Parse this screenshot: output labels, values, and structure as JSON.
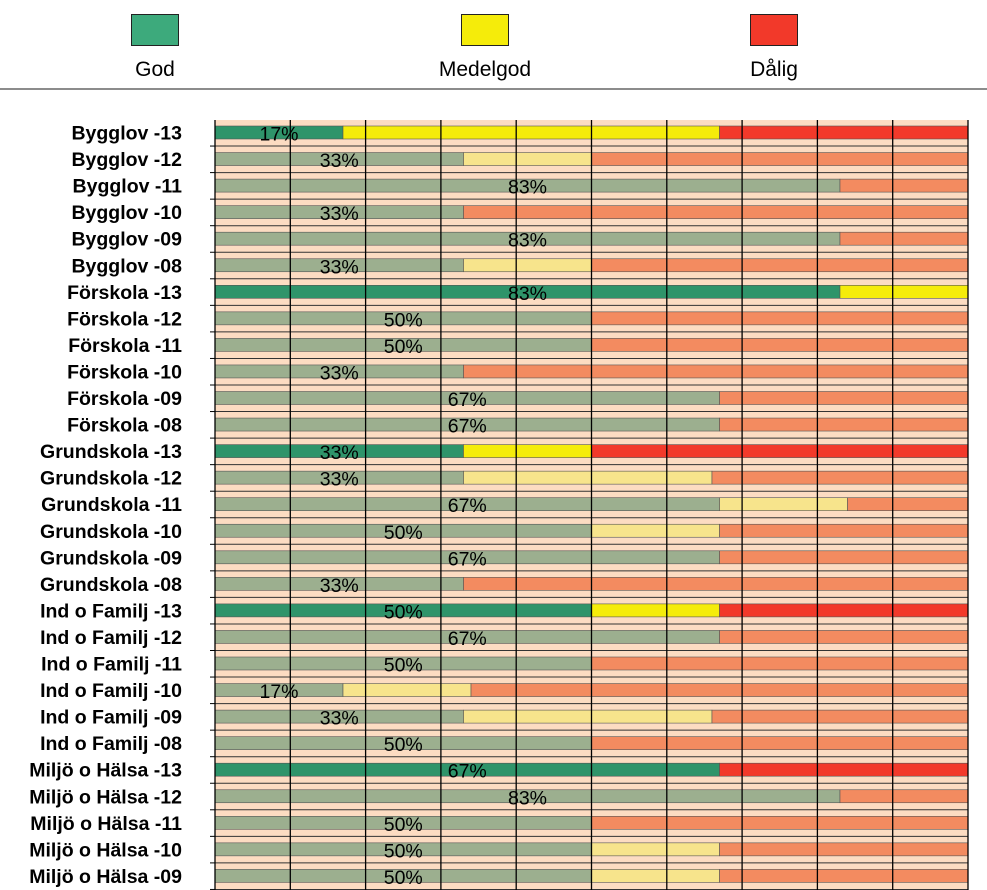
{
  "legend": {
    "items": [
      {
        "label": "God",
        "color": "#3daa7c"
      },
      {
        "label": "Medelgod",
        "color": "#f5ec0a"
      },
      {
        "label": "Dålig",
        "color": "#f2392a"
      }
    ]
  },
  "chart_data": {
    "type": "bar",
    "orientation": "horizontal",
    "stacked": true,
    "grid": true,
    "legend_position": "top",
    "xlim": [
      0,
      100
    ],
    "categories": [
      "Bygglov -13",
      "Bygglov -12",
      "Bygglov -11",
      "Bygglov -10",
      "Bygglov -09",
      "Bygglov -08",
      "Förskola -13",
      "Förskola -12",
      "Förskola -11",
      "Förskola -10",
      "Förskola -09",
      "Förskola -08",
      "Grundskola -13",
      "Grundskola -12",
      "Grundskola -11",
      "Grundskola -10",
      "Grundskola -09",
      "Grundskola -08",
      "Ind o Familj -13",
      "Ind o Familj -12",
      "Ind o Familj -11",
      "Ind o Familj -10",
      "Ind o Familj -09",
      "Ind o Familj -08",
      "Miljö o Hälsa -13",
      "Miljö o Hälsa -12",
      "Miljö o Hälsa -11",
      "Miljö o Hälsa -10",
      "Miljö o Hälsa -09"
    ],
    "highlighted": [
      "Bygglov -13",
      "Förskola -13",
      "Grundskola -13",
      "Ind o Familj -13",
      "Miljö o Hälsa -13"
    ],
    "series": [
      {
        "name": "God",
        "values": [
          17,
          33,
          83,
          33,
          83,
          33,
          83,
          50,
          50,
          33,
          67,
          67,
          33,
          33,
          67,
          50,
          67,
          33,
          50,
          67,
          50,
          17,
          33,
          50,
          67,
          83,
          50,
          50,
          50
        ]
      },
      {
        "name": "Medelgod",
        "values": [
          50,
          17,
          0,
          0,
          0,
          17,
          17,
          0,
          0,
          0,
          0,
          0,
          17,
          33,
          17,
          17,
          0,
          0,
          17,
          0,
          0,
          17,
          33,
          0,
          0,
          0,
          0,
          17,
          17
        ]
      },
      {
        "name": "Dålig",
        "values": [
          33,
          50,
          17,
          67,
          17,
          50,
          0,
          50,
          50,
          67,
          33,
          33,
          50,
          34,
          16,
          33,
          33,
          67,
          33,
          33,
          50,
          66,
          34,
          50,
          33,
          17,
          50,
          33,
          33
        ]
      }
    ],
    "labels": [
      "17%",
      "33%",
      "83%",
      "33%",
      "83%",
      "33%",
      "83%",
      "50%",
      "50%",
      "33%",
      "67%",
      "67%",
      "33%",
      "33%",
      "67%",
      "50%",
      "67%",
      "33%",
      "50%",
      "67%",
      "50%",
      "17%",
      "33%",
      "50%",
      "67%",
      "83%",
      "50%",
      "50%",
      "50%"
    ]
  }
}
